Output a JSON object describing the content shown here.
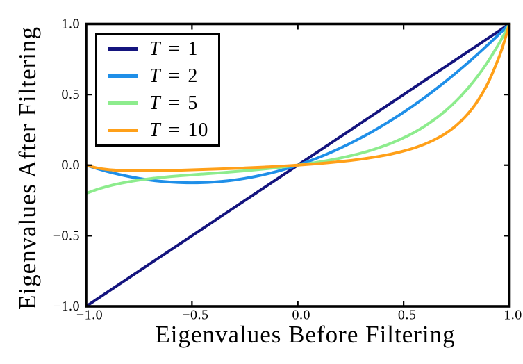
{
  "chart_data": {
    "type": "line",
    "xlabel": "Eigenvalues Before Filtering",
    "ylabel": "Eigenvalues After Filtering",
    "xlim": [
      -1,
      1
    ],
    "ylim": [
      -1,
      1
    ],
    "grid": false,
    "legend_position": "upper-left",
    "axis_color": "#000000",
    "x_ticks": [
      -1,
      -0.5,
      0,
      0.5,
      1
    ],
    "y_ticks": [
      -1,
      -0.5,
      0,
      0.5,
      1
    ],
    "x_tick_labels": [
      "−1.0",
      "−0.5",
      "0.0",
      "0.5",
      "1.0"
    ],
    "y_tick_labels": [
      "−1.0",
      "−0.5",
      "0.0",
      "0.5",
      "1.0"
    ],
    "x": [
      -1,
      -0.95,
      -0.9,
      -0.85,
      -0.8,
      -0.75,
      -0.7,
      -0.65,
      -0.6,
      -0.55,
      -0.5,
      -0.45,
      -0.4,
      -0.35,
      -0.3,
      -0.25,
      -0.2,
      -0.15,
      -0.1,
      -0.05,
      0,
      0.05,
      0.1,
      0.15,
      0.2,
      0.25,
      0.3,
      0.35,
      0.4,
      0.45,
      0.5,
      0.55,
      0.6,
      0.65,
      0.7,
      0.75,
      0.8,
      0.85,
      0.9,
      0.95,
      0.975,
      1
    ],
    "series": [
      {
        "label": "T = 1",
        "color": "#14147E",
        "values": [
          -1,
          -0.95,
          -0.9,
          -0.85,
          -0.8,
          -0.75,
          -0.7,
          -0.65,
          -0.6,
          -0.55,
          -0.5,
          -0.45,
          -0.4,
          -0.35,
          -0.3,
          -0.25,
          -0.2,
          -0.15,
          -0.1,
          -0.05,
          0,
          0.05,
          0.1,
          0.15,
          0.2,
          0.25,
          0.3,
          0.35,
          0.4,
          0.45,
          0.5,
          0.55,
          0.6,
          0.65,
          0.7,
          0.75,
          0.8,
          0.85,
          0.9,
          0.95,
          0.975,
          1
        ]
      },
      {
        "label": "T = 2",
        "color": "#1F8FE8",
        "values": [
          0,
          -0.0238,
          -0.045,
          -0.0638,
          -0.08,
          -0.0938,
          -0.105,
          -0.1138,
          -0.12,
          -0.1238,
          -0.125,
          -0.1238,
          -0.12,
          -0.1138,
          -0.105,
          -0.0938,
          -0.08,
          -0.0638,
          -0.045,
          -0.0238,
          0,
          0.0263,
          0.055,
          0.0863,
          0.12,
          0.1563,
          0.195,
          0.2363,
          0.28,
          0.3263,
          0.375,
          0.4263,
          0.48,
          0.5363,
          0.595,
          0.6563,
          0.72,
          0.7863,
          0.855,
          0.9263,
          0.9628,
          1
        ]
      },
      {
        "label": "T = 5",
        "color": "#8DEC8D",
        "values": [
          -0.2,
          -0.1728,
          -0.1507,
          -0.1327,
          -0.118,
          -0.1061,
          -0.0962,
          -0.0879,
          -0.0808,
          -0.0745,
          -0.0688,
          -0.0632,
          -0.0577,
          -0.0521,
          -0.0463,
          -0.04,
          -0.0333,
          -0.0261,
          -0.0182,
          -0.0095,
          0,
          0.0105,
          0.0222,
          0.0353,
          0.05,
          0.0666,
          0.0855,
          0.1071,
          0.132,
          0.1606,
          0.1938,
          0.2321,
          0.2767,
          0.3283,
          0.3882,
          0.4576,
          0.5379,
          0.6305,
          0.7371,
          0.8596,
          0.9274,
          1
        ]
      },
      {
        "label": "T = 10",
        "color": "#FFA019",
        "values": [
          0,
          -0.0195,
          -0.0309,
          -0.0369,
          -0.0397,
          -0.0404,
          -0.04,
          -0.0389,
          -0.0373,
          -0.0354,
          -0.0333,
          -0.031,
          -0.0286,
          -0.0259,
          -0.0231,
          -0.02,
          -0.0167,
          -0.013,
          -0.0091,
          -0.0048,
          0,
          0.0053,
          0.0111,
          0.0176,
          0.025,
          0.0333,
          0.0429,
          0.0538,
          0.0667,
          0.0818,
          0.0999,
          0.1219,
          0.1491,
          0.1832,
          0.2267,
          0.2831,
          0.357,
          0.4551,
          0.5862,
          0.7624,
          0.8724,
          1
        ]
      }
    ]
  }
}
